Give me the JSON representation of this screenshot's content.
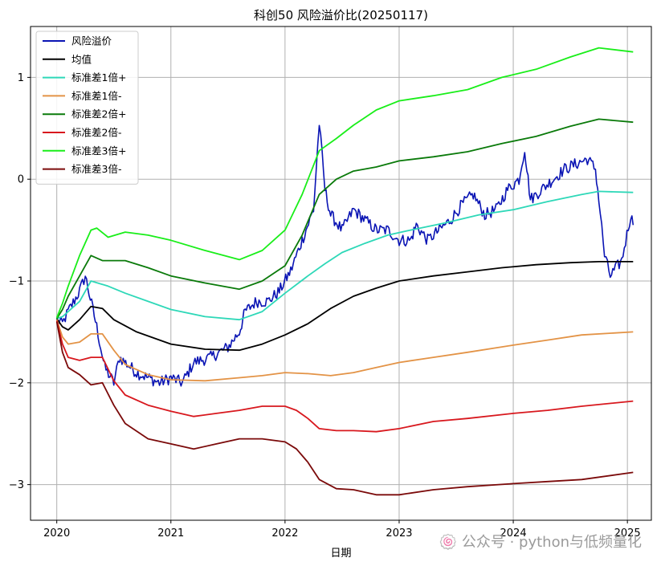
{
  "chart_data": {
    "type": "line",
    "title": "科创50 风险溢价比(20250117)",
    "xlabel": "日期",
    "ylabel": "",
    "xlim": [
      2019.77,
      2025.21
    ],
    "ylim": [
      -3.35,
      1.5
    ],
    "x_ticks": [
      2020,
      2021,
      2022,
      2023,
      2024,
      2025
    ],
    "x_tick_labels": [
      "2020",
      "2021",
      "2022",
      "2023",
      "2024",
      "2025"
    ],
    "y_ticks": [
      1,
      0,
      -1,
      -2,
      -3
    ],
    "y_tick_labels": [
      "1",
      "0",
      "−1",
      "−2",
      "−3"
    ],
    "grid": true,
    "legend_position": "top-left",
    "series": [
      {
        "name": "风险溢价",
        "color": "#0a14b4",
        "noisy": true,
        "x": [
          2020.0,
          2020.05,
          2020.1,
          2020.2,
          2020.25,
          2020.35,
          2020.42,
          2020.5,
          2020.55,
          2020.7,
          2020.8,
          2020.9,
          2021.0,
          2021.1,
          2021.2,
          2021.35,
          2021.5,
          2021.6,
          2021.65,
          2021.75,
          2021.85,
          2021.95,
          2022.05,
          2022.15,
          2022.25,
          2022.3,
          2022.35,
          2022.4,
          2022.5,
          2022.6,
          2022.7,
          2022.8,
          2022.9,
          2023.0,
          2023.1,
          2023.15,
          2023.25,
          2023.3,
          2023.45,
          2023.55,
          2023.65,
          2023.75,
          2023.85,
          2023.95,
          2024.05,
          2024.1,
          2024.15,
          2024.25,
          2024.35,
          2024.45,
          2024.55,
          2024.65,
          2024.72,
          2024.75,
          2024.8,
          2024.85,
          2024.95,
          2025.03,
          2025.05
        ],
        "y": [
          -1.4,
          -1.42,
          -1.3,
          -1.1,
          -0.95,
          -1.45,
          -1.85,
          -2.0,
          -1.75,
          -1.9,
          -1.95,
          -2.0,
          -1.95,
          -2.0,
          -1.8,
          -1.75,
          -1.65,
          -1.5,
          -1.3,
          -1.2,
          -1.2,
          -1.1,
          -0.9,
          -0.6,
          -0.3,
          0.55,
          -0.1,
          -0.35,
          -0.5,
          -0.3,
          -0.4,
          -0.5,
          -0.5,
          -0.6,
          -0.6,
          -0.45,
          -0.6,
          -0.55,
          -0.4,
          -0.25,
          -0.15,
          -0.35,
          -0.3,
          -0.1,
          0.0,
          0.3,
          -0.2,
          -0.1,
          0.0,
          0.1,
          0.15,
          0.2,
          0.1,
          -0.2,
          -0.75,
          -0.95,
          -0.8,
          -0.35,
          -0.45
        ]
      },
      {
        "name": "均值",
        "color": "#000000",
        "x": [
          2020.0,
          2020.05,
          2020.1,
          2020.2,
          2020.3,
          2020.4,
          2020.5,
          2020.7,
          2021.0,
          2021.3,
          2021.6,
          2021.8,
          2022.0,
          2022.2,
          2022.4,
          2022.6,
          2022.8,
          2023.0,
          2023.3,
          2023.6,
          2023.9,
          2024.2,
          2024.5,
          2024.75,
          2025.05
        ],
        "y": [
          -1.37,
          -1.45,
          -1.48,
          -1.38,
          -1.25,
          -1.27,
          -1.38,
          -1.5,
          -1.62,
          -1.67,
          -1.68,
          -1.62,
          -1.53,
          -1.42,
          -1.27,
          -1.15,
          -1.07,
          -1.0,
          -0.95,
          -0.91,
          -0.87,
          -0.84,
          -0.82,
          -0.81,
          -0.81
        ]
      },
      {
        "name": "标准差1倍+",
        "color": "#2ed8b8",
        "x": [
          2020.0,
          2020.05,
          2020.1,
          2020.2,
          2020.3,
          2020.45,
          2020.6,
          2020.8,
          2021.0,
          2021.3,
          2021.6,
          2021.8,
          2022.0,
          2022.2,
          2022.35,
          2022.5,
          2022.7,
          2022.9,
          2023.1,
          2023.4,
          2023.7,
          2024.0,
          2024.3,
          2024.6,
          2024.75,
          2025.05
        ],
        "y": [
          -1.37,
          -1.35,
          -1.3,
          -1.2,
          -1.0,
          -1.05,
          -1.12,
          -1.2,
          -1.28,
          -1.35,
          -1.38,
          -1.3,
          -1.12,
          -0.95,
          -0.83,
          -0.72,
          -0.63,
          -0.55,
          -0.5,
          -0.43,
          -0.35,
          -0.3,
          -0.22,
          -0.15,
          -0.12,
          -0.13
        ]
      },
      {
        "name": "标准差1倍-",
        "color": "#e39346",
        "x": [
          2020.0,
          2020.05,
          2020.1,
          2020.2,
          2020.3,
          2020.4,
          2020.5,
          2020.6,
          2020.8,
          2021.0,
          2021.3,
          2021.6,
          2021.8,
          2022.0,
          2022.2,
          2022.4,
          2022.6,
          2022.8,
          2023.0,
          2023.3,
          2023.6,
          2024.0,
          2024.3,
          2024.6,
          2025.05
        ],
        "y": [
          -1.38,
          -1.55,
          -1.62,
          -1.6,
          -1.52,
          -1.52,
          -1.68,
          -1.82,
          -1.92,
          -1.97,
          -1.98,
          -1.95,
          -1.93,
          -1.9,
          -1.91,
          -1.93,
          -1.9,
          -1.85,
          -1.8,
          -1.75,
          -1.7,
          -1.63,
          -1.58,
          -1.53,
          -1.5
        ]
      },
      {
        "name": "标准差2倍+",
        "color": "#0a7a0a",
        "x": [
          2020.0,
          2020.05,
          2020.1,
          2020.2,
          2020.3,
          2020.4,
          2020.6,
          2020.8,
          2021.0,
          2021.3,
          2021.6,
          2021.8,
          2022.0,
          2022.15,
          2022.3,
          2022.45,
          2022.6,
          2022.8,
          2023.0,
          2023.3,
          2023.6,
          2023.9,
          2024.2,
          2024.5,
          2024.75,
          2025.05
        ],
        "y": [
          -1.37,
          -1.28,
          -1.15,
          -0.95,
          -0.75,
          -0.8,
          -0.8,
          -0.87,
          -0.95,
          -1.02,
          -1.08,
          -1.0,
          -0.85,
          -0.55,
          -0.15,
          0.0,
          0.08,
          0.12,
          0.18,
          0.22,
          0.27,
          0.35,
          0.42,
          0.52,
          0.59,
          0.56
        ]
      },
      {
        "name": "标准差2倍-",
        "color": "#d8181e",
        "x": [
          2020.0,
          2020.05,
          2020.1,
          2020.2,
          2020.3,
          2020.4,
          2020.5,
          2020.6,
          2020.8,
          2021.0,
          2021.2,
          2021.4,
          2021.6,
          2021.8,
          2022.0,
          2022.1,
          2022.2,
          2022.3,
          2022.45,
          2022.6,
          2022.8,
          2023.0,
          2023.3,
          2023.6,
          2024.0,
          2024.3,
          2024.6,
          2025.05
        ],
        "y": [
          -1.39,
          -1.62,
          -1.75,
          -1.78,
          -1.75,
          -1.75,
          -1.98,
          -2.12,
          -2.22,
          -2.28,
          -2.33,
          -2.3,
          -2.27,
          -2.23,
          -2.23,
          -2.27,
          -2.35,
          -2.45,
          -2.47,
          -2.47,
          -2.48,
          -2.45,
          -2.38,
          -2.35,
          -2.3,
          -2.27,
          -2.23,
          -2.18
        ]
      },
      {
        "name": "标准差3倍+",
        "color": "#19ee19",
        "x": [
          2020.0,
          2020.05,
          2020.1,
          2020.2,
          2020.3,
          2020.35,
          2020.45,
          2020.6,
          2020.8,
          2021.0,
          2021.3,
          2021.6,
          2021.8,
          2022.0,
          2022.15,
          2022.3,
          2022.45,
          2022.6,
          2022.8,
          2023.0,
          2023.3,
          2023.6,
          2023.9,
          2024.2,
          2024.5,
          2024.75,
          2025.05
        ],
        "y": [
          -1.36,
          -1.22,
          -1.05,
          -0.75,
          -0.5,
          -0.48,
          -0.57,
          -0.52,
          -0.55,
          -0.6,
          -0.7,
          -0.79,
          -0.7,
          -0.5,
          -0.15,
          0.28,
          0.4,
          0.53,
          0.68,
          0.77,
          0.82,
          0.88,
          1.0,
          1.08,
          1.2,
          1.29,
          1.25
        ]
      },
      {
        "name": "标准差3倍-",
        "color": "#7b0a0a",
        "x": [
          2020.0,
          2020.05,
          2020.1,
          2020.2,
          2020.3,
          2020.4,
          2020.5,
          2020.6,
          2020.8,
          2021.0,
          2021.2,
          2021.4,
          2021.6,
          2021.8,
          2022.0,
          2022.1,
          2022.2,
          2022.3,
          2022.45,
          2022.6,
          2022.8,
          2023.0,
          2023.3,
          2023.6,
          2024.0,
          2024.3,
          2024.6,
          2025.05
        ],
        "y": [
          -1.4,
          -1.7,
          -1.85,
          -1.92,
          -2.02,
          -2.0,
          -2.22,
          -2.4,
          -2.55,
          -2.6,
          -2.65,
          -2.6,
          -2.55,
          -2.55,
          -2.58,
          -2.65,
          -2.78,
          -2.95,
          -3.04,
          -3.05,
          -3.1,
          -3.1,
          -3.05,
          -3.02,
          -2.99,
          -2.97,
          -2.95,
          -2.88
        ]
      }
    ]
  },
  "watermark": "🍥 公众号 · python与低频量化"
}
